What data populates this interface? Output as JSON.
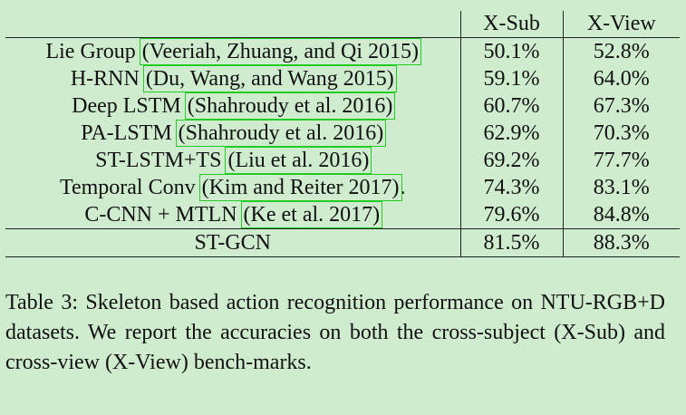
{
  "table": {
    "headers": [
      "",
      "X-Sub",
      "X-View"
    ],
    "rows": [
      {
        "method": "Lie Group",
        "cite": "(Veeriah, Zhuang, and Qi 2015)",
        "suffix": "",
        "xsub": "50.1%",
        "xview": "52.8%"
      },
      {
        "method": "H-RNN",
        "cite": "(Du, Wang, and Wang 2015)",
        "suffix": "",
        "xsub": "59.1%",
        "xview": "64.0%"
      },
      {
        "method": "Deep LSTM",
        "cite": "(Shahroudy et al. 2016)",
        "suffix": "",
        "xsub": "60.7%",
        "xview": "67.3%"
      },
      {
        "method": "PA-LSTM",
        "cite": "(Shahroudy et al. 2016)",
        "suffix": "",
        "xsub": "62.9%",
        "xview": "70.3%"
      },
      {
        "method": "ST-LSTM+TS",
        "cite": "(Liu et al. 2016)",
        "suffix": "",
        "xsub": "69.2%",
        "xview": "77.7%"
      },
      {
        "method": "Temporal Conv",
        "cite": "(Kim and Reiter 2017)",
        "suffix": ".",
        "xsub": "74.3%",
        "xview": "83.1%"
      },
      {
        "method": "C-CNN + MTLN",
        "cite": "(Ke et al. 2017)",
        "suffix": "",
        "xsub": "79.6%",
        "xview": "84.8%"
      }
    ],
    "ours": {
      "method": "ST-GCN",
      "xsub": "81.5%",
      "xview": "88.3%"
    }
  },
  "caption": "Table 3: Skeleton based action recognition performance on NTU-RGB+D datasets. We report the accuracies on both the cross-subject (X-Sub) and cross-view (X-View) bench-marks."
}
